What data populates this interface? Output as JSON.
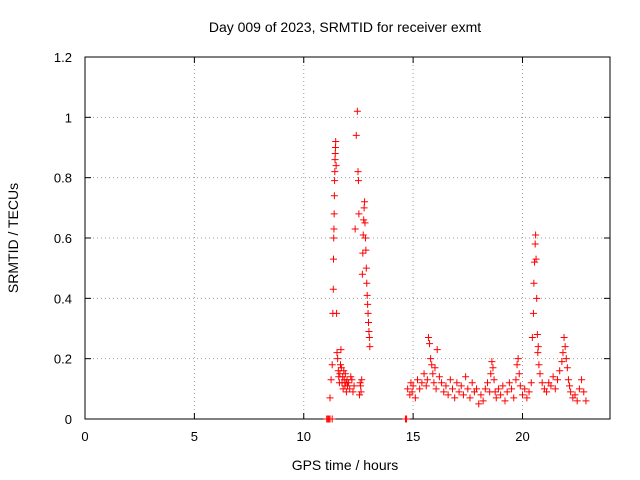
{
  "chart_data": {
    "type": "scatter",
    "title": "Day 009 of 2023, SRMTID for receiver exmt",
    "xlabel": "GPS time / hours",
    "ylabel": "SRMTID / TECUs",
    "xlim": [
      0,
      24
    ],
    "ylim": [
      0,
      1.2
    ],
    "xticks": [
      0,
      5,
      10,
      15,
      20
    ],
    "yticks": [
      0,
      0.2,
      0.4,
      0.6,
      0.8,
      1,
      1.2
    ],
    "xtick_labels": [
      "0",
      "5",
      "10",
      "15",
      "20"
    ],
    "ytick_labels": [
      "0",
      "0.2",
      "0.4",
      "0.6",
      "0.8",
      "1",
      "1.2"
    ],
    "grid": true,
    "marker": "+",
    "series": [
      {
        "name": "SRMTID",
        "color": "#ff0000",
        "x": [
          11.05,
          11.1,
          11.15,
          11.2,
          11.25,
          11.3,
          11.33,
          11.35,
          11.36,
          11.37,
          11.38,
          11.39,
          11.4,
          11.41,
          11.42,
          11.43,
          11.44,
          11.45,
          11.46,
          11.48,
          11.5,
          11.52,
          11.55,
          11.58,
          11.6,
          11.63,
          11.65,
          11.68,
          11.7,
          11.72,
          11.75,
          11.78,
          11.8,
          11.83,
          11.85,
          11.88,
          11.9,
          11.93,
          11.95,
          11.98,
          12.0,
          12.05,
          12.1,
          12.15,
          12.2,
          12.25,
          12.3,
          12.35,
          12.4,
          12.45,
          12.48,
          12.5,
          12.52,
          12.55,
          12.58,
          12.6,
          12.62,
          12.65,
          12.68,
          12.7,
          12.72,
          12.74,
          12.76,
          12.78,
          12.8,
          12.82,
          12.84,
          12.86,
          12.88,
          12.9,
          12.92,
          12.94,
          12.96,
          12.98,
          13.0,
          13.02,
          14.65,
          14.75,
          14.85,
          14.9,
          14.95,
          15.0,
          15.1,
          15.2,
          15.3,
          15.4,
          15.5,
          15.6,
          15.65,
          15.7,
          15.75,
          15.8,
          15.85,
          15.9,
          15.95,
          16.0,
          16.05,
          16.1,
          16.2,
          16.3,
          16.4,
          16.5,
          16.6,
          16.7,
          16.8,
          16.9,
          17.0,
          17.1,
          17.2,
          17.3,
          17.4,
          17.5,
          17.6,
          17.7,
          17.8,
          17.9,
          18.0,
          18.1,
          18.2,
          18.3,
          18.4,
          18.5,
          18.55,
          18.6,
          18.65,
          18.7,
          18.75,
          18.8,
          18.9,
          19.0,
          19.1,
          19.2,
          19.3,
          19.4,
          19.5,
          19.6,
          19.7,
          19.75,
          19.8,
          19.85,
          19.9,
          20.0,
          20.1,
          20.2,
          20.3,
          20.4,
          20.45,
          20.5,
          20.52,
          20.55,
          20.58,
          20.6,
          20.62,
          20.65,
          20.68,
          20.7,
          20.72,
          20.75,
          20.8,
          20.9,
          21.0,
          21.1,
          21.2,
          21.3,
          21.4,
          21.5,
          21.6,
          21.7,
          21.8,
          21.85,
          21.9,
          21.95,
          22.0,
          22.05,
          22.1,
          22.15,
          22.2,
          22.3,
          22.4,
          22.5,
          22.6,
          22.7,
          22.8,
          22.9,
          11.1,
          11.2,
          11.3,
          14.7
        ],
        "y": [
          0.0,
          0.0,
          0.0,
          0.07,
          0.13,
          0.18,
          0.35,
          0.43,
          0.53,
          0.6,
          0.63,
          0.68,
          0.74,
          0.79,
          0.82,
          0.86,
          0.88,
          0.9,
          0.92,
          0.84,
          0.35,
          0.22,
          0.2,
          0.16,
          0.14,
          0.12,
          0.15,
          0.18,
          0.23,
          0.17,
          0.12,
          0.14,
          0.1,
          0.16,
          0.13,
          0.11,
          0.15,
          0.12,
          0.09,
          0.13,
          0.11,
          0.12,
          0.1,
          0.14,
          0.13,
          0.09,
          0.11,
          0.63,
          0.94,
          1.02,
          0.82,
          0.79,
          0.68,
          0.08,
          0.12,
          0.11,
          0.09,
          0.13,
          0.48,
          0.55,
          0.61,
          0.66,
          0.7,
          0.72,
          0.65,
          0.6,
          0.56,
          0.5,
          0.45,
          0.41,
          0.38,
          0.35,
          0.32,
          0.29,
          0.27,
          0.24,
          0.0,
          0.1,
          0.08,
          0.12,
          0.09,
          0.11,
          0.07,
          0.13,
          0.1,
          0.12,
          0.15,
          0.11,
          0.13,
          0.27,
          0.25,
          0.2,
          0.18,
          0.15,
          0.12,
          0.17,
          0.1,
          0.23,
          0.14,
          0.12,
          0.09,
          0.11,
          0.08,
          0.13,
          0.1,
          0.07,
          0.12,
          0.09,
          0.11,
          0.08,
          0.14,
          0.1,
          0.07,
          0.12,
          0.09,
          0.1,
          0.05,
          0.08,
          0.06,
          0.1,
          0.12,
          0.09,
          0.15,
          0.19,
          0.17,
          0.13,
          0.09,
          0.07,
          0.1,
          0.08,
          0.11,
          0.06,
          0.09,
          0.12,
          0.1,
          0.07,
          0.13,
          0.18,
          0.2,
          0.15,
          0.11,
          0.08,
          0.1,
          0.07,
          0.09,
          0.12,
          0.27,
          0.35,
          0.45,
          0.52,
          0.58,
          0.61,
          0.53,
          0.4,
          0.28,
          0.22,
          0.24,
          0.18,
          0.15,
          0.12,
          0.1,
          0.09,
          0.12,
          0.11,
          0.14,
          0.1,
          0.13,
          0.16,
          0.19,
          0.22,
          0.27,
          0.24,
          0.2,
          0.17,
          0.13,
          0.11,
          0.09,
          0.07,
          0.08,
          0.06,
          0.1,
          0.13,
          0.09,
          0.06,
          0.0,
          0.0,
          0.0,
          0.0
        ]
      }
    ]
  }
}
